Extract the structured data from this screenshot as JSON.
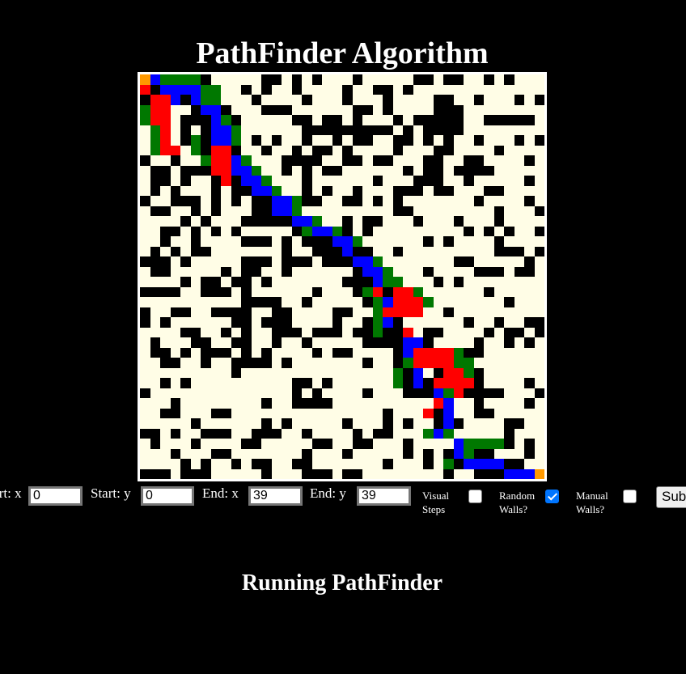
{
  "title": "PathFinder Algorithm",
  "status": "Running PathFinder",
  "controls": {
    "start_x_label": "Start: x",
    "start_x_value": "0",
    "start_y_label": "Start: y",
    "start_y_value": "0",
    "end_x_label": "End: x",
    "end_x_value": "39",
    "end_y_label": "End: y",
    "end_y_value": "39",
    "visual_steps_label_1": "Visual",
    "visual_steps_label_2": "Steps",
    "visual_steps_checked": false,
    "random_walls_label_1": "Random",
    "random_walls_label_2": "Walls?",
    "random_walls_checked": true,
    "manual_walls_label_1": "Manual",
    "manual_walls_label_2": "Walls?",
    "manual_walls_checked": false,
    "submit_label": "Submit"
  },
  "grid": {
    "size": 40,
    "legend": {
      "0": "open",
      "1": "wall",
      "2": "path",
      "3": "visited",
      "4": "frontier",
      "5": "endpoint"
    },
    "colors": {
      "open": "#fffde6",
      "wall": "#000000",
      "path": "#0000ff",
      "visited": "#ff0000",
      "frontier": "#007800",
      "endpoint": "#ff9900"
    },
    "rows": [
      "5244441000001101010001000001101100101000",
      "3122224400101001000010011010000000000000",
      "1332124400010000100010001000011001000101",
      "4330012210001110000001101000011100000000",
      "4330111241000001101101000101111100111110",
      "0430101224000000111111111010111100000000",
      "0430141224010100100101100110101001000101",
      "0433041331001001011010000100011000010000",
      "1001004332400011110011011000110011000010",
      "0110111332240010101100000010110111100000",
      "0110100131224000100000010001110010000010",
      "0101000101122400101001000111011000110000",
      "1001110101011224110011010100000001000010",
      "0110010100011224000000000110000000010001",
      "0000101000111112240010110001000100010000",
      "0011010101000001422410100000000010101001",
      "0010010000111010111224000000101000010000",
      "0101011000000010011121100100000000011101",
      "1110100000111011101112240000000110000010",
      "0110000010110010000001224000100001110110",
      "0000101101101000000011124400010100000000",
      "1111001110100000010001431334000000100000",
      "0000000000111100100000142333400000001000",
      "1001100111100110000110043333001000000000",
      "1010000001101110000100142100000010010011",
      "0000110010100111011101141130110000101101",
      "0100011001100100100000111122100001001010",
      "0110101110101000010110000123333411000000",
      "0011001001111010000000100143333440000000",
      "0000000001000000000000000412013341000000",
      "0010100000000001101000000412133331000010",
      "1000000000000001010000100011124311110001",
      "0001000000001001111000000000032001000010",
      "0011000110000000000000001000312001100000",
      "0000010000001010000010001010012100001100",
      "1101001110011100100001011000424000001000",
      "0100010000110000011001100010000244441010",
      "0001000110000000100010000010101241100010",
      "0000101001011001100000001000104122221100",
      "1110111000001000111011000000001001112225"
    ]
  }
}
